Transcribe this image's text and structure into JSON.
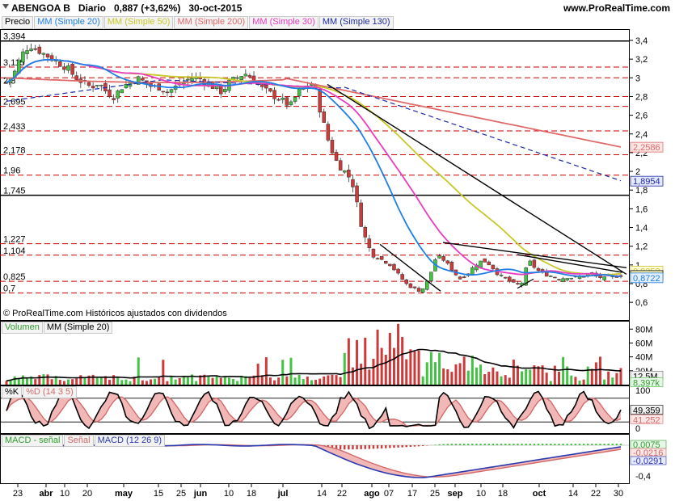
{
  "header": {
    "instrument": "ABENGOA B",
    "period": "Diario",
    "price": "0,887 (+3,62%)",
    "date": "30-oct-2015",
    "site": "www.ProRealTime.com"
  },
  "legend": {
    "price": "Precio",
    "ma20": "MM (Simple 20)",
    "ma50": "MM (Simple 50)",
    "ma200": "MM (Simple 200)",
    "ma30": "MM (Simple 30)",
    "ma130": "MM (Simple 130)"
  },
  "colors": {
    "up": "#44c244",
    "down": "#cc3a3a",
    "ma20": "#1e7fe6",
    "ma50": "#c8c828",
    "ma200": "#e06a6a",
    "ma30": "#e83cc0",
    "ma130": "#1c2aa8",
    "level": "#cc0000"
  },
  "watermark": "© ProRealTime.com Históricos ajustados con dividendos",
  "level_labels": [
    "3,394",
    "3,115",
    "2,8",
    "2,695",
    "2,433",
    "2,178",
    "1,96",
    "1,745",
    "1,227",
    "1,104",
    "0,825",
    "0,7"
  ],
  "price_axis": [
    "3,4",
    "3,2",
    "3",
    "2,8",
    "2,6",
    "2,4",
    "2,2",
    "2",
    "1,8",
    "1,6",
    "1,4",
    "1,2",
    "1",
    "0,8",
    "0,6"
  ],
  "price_tags": {
    "ma200": "2,2586",
    "ma130": "1,8954",
    "ma50": "0,9252",
    "last": "0,887",
    "ma20": "0,8722"
  },
  "volume": {
    "title": "Volumen",
    "ma_label": "MM (Simple 20)",
    "axis": [
      "80M",
      "60M",
      "40M",
      "20M"
    ],
    "tags": {
      "ma": "12,5M",
      "last": "8,397k"
    }
  },
  "stoch": {
    "k_label": "%K",
    "d_label": "%D (14 3 5)",
    "axis": [
      "100",
      "0"
    ],
    "tags": {
      "k": "49,359",
      "d": "41,252"
    }
  },
  "macd": {
    "hist_label": "MACD - señal",
    "signal_label": "Señal",
    "macd_label": "MACD (12 26 9)",
    "axis": [
      "-0,2",
      "-0,4"
    ],
    "tags": {
      "top": "0,0075",
      "mid": "-0,0216",
      "low": "-0,0291"
    }
  },
  "x_axis": [
    {
      "label": "23",
      "bold": false
    },
    {
      "label": "abr",
      "bold": true
    },
    {
      "label": "10",
      "bold": false
    },
    {
      "label": "20",
      "bold": false
    },
    {
      "label": "may",
      "bold": true
    },
    {
      "label": "15",
      "bold": false
    },
    {
      "label": "25",
      "bold": false
    },
    {
      "label": "jun",
      "bold": true
    },
    {
      "label": "10",
      "bold": false
    },
    {
      "label": "18",
      "bold": false
    },
    {
      "label": "jul",
      "bold": true
    },
    {
      "label": "14",
      "bold": false
    },
    {
      "label": "22",
      "bold": false
    },
    {
      "label": "ago",
      "bold": true
    },
    {
      "label": "07",
      "bold": false
    },
    {
      "label": "17",
      "bold": false
    },
    {
      "label": "25",
      "bold": false
    },
    {
      "label": "sep",
      "bold": true
    },
    {
      "label": "10",
      "bold": false
    },
    {
      "label": "18",
      "bold": false
    },
    {
      "label": "oct",
      "bold": true
    },
    {
      "label": "14",
      "bold": false
    },
    {
      "label": "22",
      "bold": false
    },
    {
      "label": "30",
      "bold": false
    }
  ],
  "chart_data": {
    "type": "candlestick",
    "title": "ABENGOA B Diario 0,887 (+3,62%) 30-oct-2015",
    "y_range": [
      0.6,
      3.5
    ],
    "support_resistance_levels": [
      3.394,
      3.115,
      3.0,
      2.8,
      2.695,
      2.433,
      2.178,
      1.96,
      1.745,
      1.227,
      1.104,
      0.825,
      0.7
    ],
    "last_close": 0.887,
    "series_ohlc_close_approx": [
      2.95,
      3.05,
      3.25,
      3.35,
      3.3,
      3.25,
      3.2,
      3.15,
      3.1,
      3.0,
      2.95,
      2.9,
      2.95,
      2.85,
      2.8,
      2.9,
      2.95,
      3.0,
      2.95,
      2.9,
      2.9,
      2.85,
      2.9,
      2.95,
      3.0,
      3.0,
      2.95,
      2.9,
      2.85,
      2.95,
      3.0,
      3.05,
      3.0,
      2.9,
      2.85,
      2.8,
      2.75,
      2.7,
      2.85,
      2.9,
      2.95,
      2.6,
      2.3,
      2.1,
      2.0,
      1.9,
      1.5,
      1.2,
      1.1,
      1.05,
      1.0,
      0.9,
      0.8,
      0.75,
      0.72,
      0.85,
      1.1,
      1.05,
      0.95,
      0.85,
      0.9,
      1.0,
      1.05,
      1.0,
      0.9,
      0.85,
      0.8,
      0.78,
      1.05,
      0.95,
      0.9,
      0.88,
      0.85,
      0.87,
      0.86,
      0.88,
      0.9,
      0.87,
      0.86,
      0.88,
      0.887
    ],
    "ma_series": [
      {
        "name": "MM (Simple 20)",
        "end": 0.8722
      },
      {
        "name": "MM (Simple 50)",
        "end": 0.9252
      },
      {
        "name": "MM (Simple 200)",
        "end": 2.2586
      },
      {
        "name": "MM (Simple 130)",
        "end": 1.8954
      }
    ],
    "volume_ma_end": "12,5M",
    "volume_last": "8,397k",
    "stoch_k_end": 49.359,
    "stoch_d_end": 41.252,
    "macd_end": [
      0.0075,
      -0.0216,
      -0.0291
    ]
  }
}
